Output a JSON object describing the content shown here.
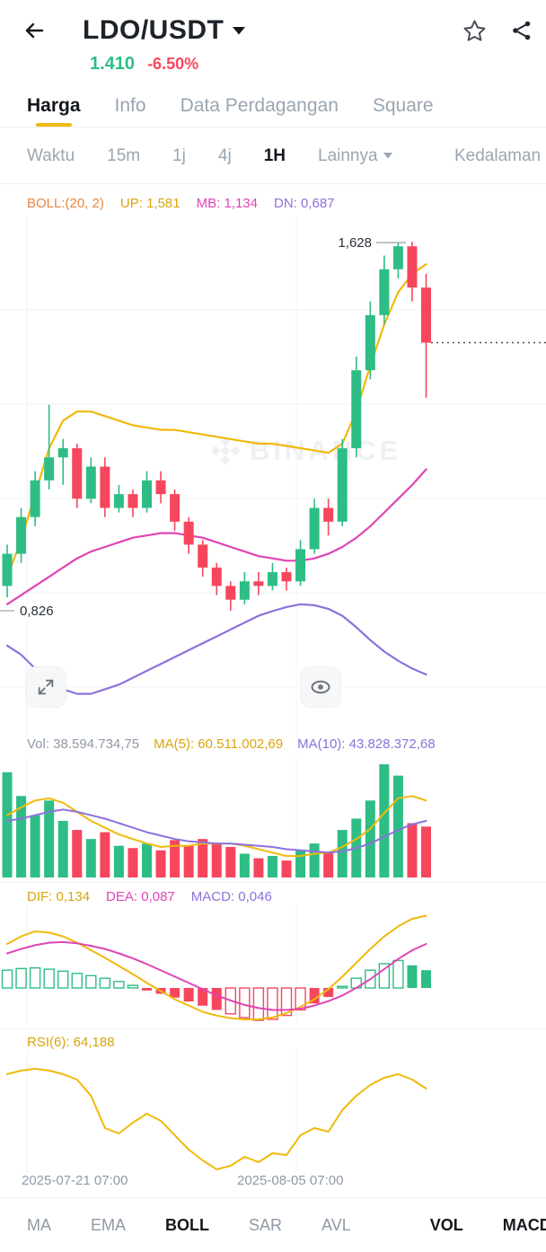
{
  "header": {
    "title": "LDO/USDT",
    "price": "1.410",
    "change": "-6.50%"
  },
  "tabs": {
    "items": [
      {
        "label": "Harga",
        "active": true
      },
      {
        "label": "Info",
        "active": false
      },
      {
        "label": "Data Perdagangan",
        "active": false
      },
      {
        "label": "Square",
        "active": false
      }
    ]
  },
  "timeframes": {
    "items": [
      {
        "label": "Waktu"
      },
      {
        "label": "15m"
      },
      {
        "label": "1j"
      },
      {
        "label": "4j"
      },
      {
        "label": "1H",
        "active": true
      },
      {
        "label": "Lainnya",
        "dropdown": true
      },
      {
        "label": "Kedalaman"
      }
    ]
  },
  "indicators": {
    "boll": "BOLL:(20, 2)",
    "up": "UP: 1,581",
    "mb": "MB: 1,134",
    "dn": "DN: 0,687"
  },
  "volume_labels": {
    "vol": "Vol: 38.594.734,75",
    "ma5": "MA(5): 60.511.002,69",
    "ma10": "MA(10): 43.828.372,68"
  },
  "macd_labels": {
    "dif": "DIF: 0,134",
    "dea": "DEA: 0,087",
    "macd": "MACD: 0,046"
  },
  "rsi_label": {
    "text": "RSI(6): 64,188"
  },
  "watermark": {
    "text": "BINANCE"
  },
  "annotations": {
    "high_text": "1,628",
    "high_value": 1.628,
    "low_text": "0,826",
    "low_value": 0.826
  },
  "axis": {
    "labels": [
      "2025-07-21 07:00",
      "2025-08-05 07:00"
    ]
  },
  "toolbar": {
    "items": [
      {
        "label": "MA"
      },
      {
        "label": "EMA"
      },
      {
        "label": "BOLL",
        "active": true
      },
      {
        "label": "SAR"
      },
      {
        "label": "AVL"
      },
      {
        "label": "VOL",
        "active": true
      },
      {
        "label": "MACD",
        "active": true
      }
    ]
  },
  "colors": {
    "up": "#2EBD85",
    "down": "#F6465D",
    "yellow": "#F0B90B",
    "magenta": "#E044B5",
    "purple": "#8D71DB",
    "grid": "#F2F3F5",
    "dashed": "#4A5058",
    "annotation": "#2B3139",
    "accent": "#F0B90B",
    "price_up": "#2EBD85",
    "change_down": "#F6465D"
  },
  "chart_data": {
    "type": "candlestick",
    "symbol": "LDO/USDT",
    "interval": "1H",
    "last_price": 1.41,
    "price_axis": {
      "max": 1.687,
      "min": 0.552
    },
    "candles": [
      [
        0.88,
        0.97,
        0.855,
        0.95
      ],
      [
        0.95,
        1.05,
        0.93,
        1.03
      ],
      [
        1.03,
        1.13,
        1.01,
        1.11
      ],
      [
        1.11,
        1.275,
        1.09,
        1.16
      ],
      [
        1.16,
        1.2,
        1.1,
        1.18
      ],
      [
        1.18,
        1.19,
        1.05,
        1.07
      ],
      [
        1.07,
        1.16,
        1.06,
        1.14
      ],
      [
        1.14,
        1.16,
        1.03,
        1.05
      ],
      [
        1.05,
        1.1,
        1.04,
        1.08
      ],
      [
        1.08,
        1.09,
        1.03,
        1.05
      ],
      [
        1.05,
        1.13,
        1.04,
        1.11
      ],
      [
        1.11,
        1.13,
        1.06,
        1.08
      ],
      [
        1.08,
        1.09,
        1.0,
        1.02
      ],
      [
        1.02,
        1.03,
        0.95,
        0.97
      ],
      [
        0.97,
        0.98,
        0.9,
        0.92
      ],
      [
        0.92,
        0.93,
        0.86,
        0.88
      ],
      [
        0.88,
        0.89,
        0.826,
        0.85
      ],
      [
        0.85,
        0.91,
        0.84,
        0.89
      ],
      [
        0.89,
        0.91,
        0.86,
        0.88
      ],
      [
        0.88,
        0.93,
        0.87,
        0.91
      ],
      [
        0.91,
        0.92,
        0.87,
        0.89
      ],
      [
        0.89,
        0.98,
        0.88,
        0.96
      ],
      [
        0.96,
        1.07,
        0.95,
        1.05
      ],
      [
        1.05,
        1.07,
        0.99,
        1.02
      ],
      [
        1.02,
        1.2,
        1.01,
        1.18
      ],
      [
        1.18,
        1.38,
        1.16,
        1.35
      ],
      [
        1.35,
        1.5,
        1.33,
        1.47
      ],
      [
        1.47,
        1.6,
        1.45,
        1.57
      ],
      [
        1.57,
        1.628,
        1.55,
        1.62
      ],
      [
        1.62,
        1.63,
        1.5,
        1.53
      ],
      [
        1.53,
        1.56,
        1.29,
        1.41
      ]
    ],
    "boll_up": [
      0.9,
      0.98,
      1.08,
      1.18,
      1.24,
      1.26,
      1.26,
      1.25,
      1.24,
      1.23,
      1.225,
      1.22,
      1.22,
      1.215,
      1.21,
      1.205,
      1.2,
      1.195,
      1.19,
      1.19,
      1.185,
      1.18,
      1.175,
      1.17,
      1.19,
      1.26,
      1.36,
      1.45,
      1.52,
      1.56,
      1.581
    ],
    "boll_mb": [
      0.84,
      0.86,
      0.88,
      0.9,
      0.92,
      0.94,
      0.955,
      0.965,
      0.975,
      0.985,
      0.99,
      0.995,
      0.995,
      0.99,
      0.985,
      0.975,
      0.965,
      0.955,
      0.945,
      0.94,
      0.935,
      0.935,
      0.94,
      0.95,
      0.965,
      0.985,
      1.01,
      1.04,
      1.07,
      1.1,
      1.134
    ],
    "boll_dn": [
      0.75,
      0.73,
      0.7,
      0.675,
      0.655,
      0.645,
      0.645,
      0.655,
      0.665,
      0.68,
      0.695,
      0.71,
      0.725,
      0.74,
      0.755,
      0.77,
      0.785,
      0.8,
      0.815,
      0.825,
      0.834,
      0.84,
      0.838,
      0.83,
      0.815,
      0.79,
      0.762,
      0.737,
      0.717,
      0.7,
      0.687
    ],
    "volume": {
      "values": [
        0.93,
        0.72,
        0.55,
        0.68,
        0.5,
        0.42,
        0.34,
        0.4,
        0.28,
        0.26,
        0.3,
        0.24,
        0.33,
        0.28,
        0.34,
        0.3,
        0.27,
        0.21,
        0.17,
        0.19,
        0.15,
        0.24,
        0.3,
        0.22,
        0.42,
        0.52,
        0.68,
        1.0,
        0.9,
        0.48,
        0.45
      ],
      "ma5": [
        0.55,
        0.62,
        0.68,
        0.7,
        0.66,
        0.58,
        0.5,
        0.44,
        0.38,
        0.34,
        0.3,
        0.27,
        0.28,
        0.28,
        0.3,
        0.3,
        0.3,
        0.28,
        0.25,
        0.22,
        0.19,
        0.19,
        0.21,
        0.22,
        0.27,
        0.34,
        0.43,
        0.57,
        0.7,
        0.72,
        0.68
      ],
      "ma10": [
        0.5,
        0.52,
        0.55,
        0.58,
        0.6,
        0.58,
        0.55,
        0.52,
        0.48,
        0.44,
        0.4,
        0.37,
        0.34,
        0.32,
        0.31,
        0.3,
        0.3,
        0.29,
        0.28,
        0.27,
        0.25,
        0.24,
        0.23,
        0.22,
        0.23,
        0.26,
        0.3,
        0.36,
        0.42,
        0.47,
        0.5
      ]
    },
    "macd": {
      "hist": [
        0.55,
        0.6,
        0.62,
        0.58,
        0.52,
        0.45,
        0.38,
        0.3,
        0.2,
        0.08,
        -0.08,
        -0.18,
        -0.3,
        -0.42,
        -0.55,
        -0.68,
        -0.8,
        -0.92,
        -1.0,
        -0.97,
        -0.85,
        -0.68,
        -0.48,
        -0.28,
        0.05,
        0.3,
        0.55,
        0.75,
        0.85,
        0.7,
        0.55
      ],
      "solid": [
        0,
        0,
        0,
        0,
        0,
        0,
        0,
        0,
        0,
        0,
        1,
        1,
        1,
        1,
        1,
        1,
        0,
        0,
        0,
        0,
        0,
        0,
        1,
        1,
        0,
        0,
        0,
        0,
        0,
        1,
        1
      ],
      "dif": [
        0.7,
        0.82,
        0.9,
        0.88,
        0.82,
        0.72,
        0.6,
        0.48,
        0.35,
        0.22,
        0.08,
        -0.05,
        -0.18,
        -0.28,
        -0.38,
        -0.44,
        -0.48,
        -0.5,
        -0.5,
        -0.47,
        -0.4,
        -0.3,
        -0.18,
        -0.02,
        0.18,
        0.4,
        0.62,
        0.82,
        0.98,
        1.1,
        1.15
      ],
      "dea": [
        0.55,
        0.62,
        0.68,
        0.72,
        0.73,
        0.71,
        0.67,
        0.62,
        0.55,
        0.47,
        0.38,
        0.28,
        0.18,
        0.08,
        -0.02,
        -0.12,
        -0.2,
        -0.27,
        -0.32,
        -0.35,
        -0.35,
        -0.33,
        -0.28,
        -0.21,
        -0.12,
        0.0,
        0.14,
        0.3,
        0.46,
        0.6,
        0.7
      ]
    },
    "rsi": [
      72,
      74,
      75,
      74,
      72,
      69,
      60,
      42,
      39,
      45,
      50,
      46,
      38,
      30,
      24,
      19,
      21,
      26,
      23,
      28,
      27,
      38,
      42,
      40,
      52,
      60,
      66,
      70,
      72,
      69,
      64
    ],
    "x_axis_labels": [
      "2025-07-21 07:00",
      "2025-08-05 07:00"
    ]
  }
}
